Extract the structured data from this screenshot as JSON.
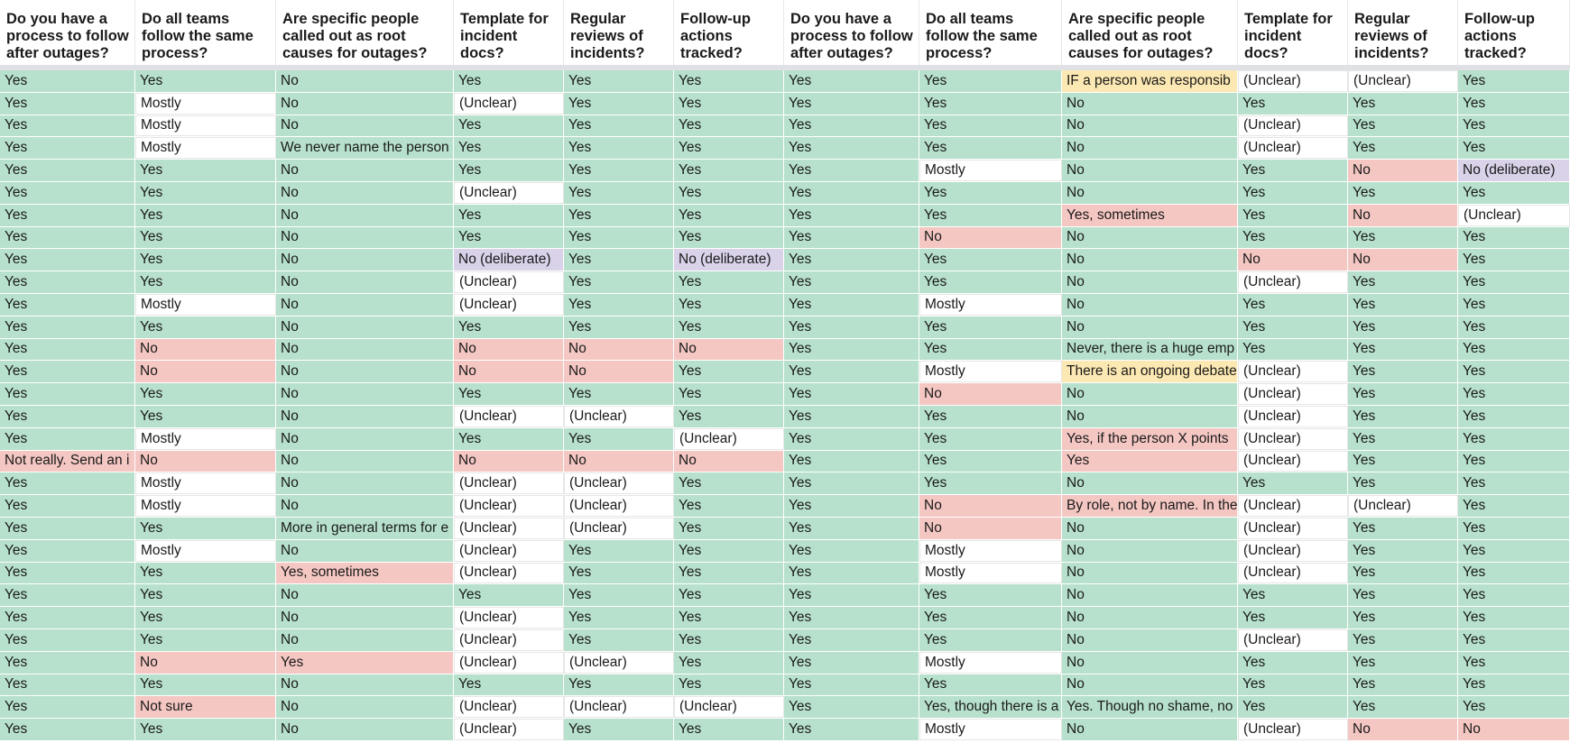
{
  "columns": [
    "Do you have a process to follow after outages?",
    "Do all teams follow the same process?",
    "Are specific people called out as root causes for outages?",
    "Template for incident docs?",
    "Regular reviews of incidents?",
    "Follow-up actions tracked?"
  ],
  "status_colors": {
    "yes_green": "#b7e1cd",
    "unclear_white": "#ffffff",
    "no_red": "#f4c7c3",
    "deliberate_purple": "#d9d2e9",
    "comment_yellow": "#fce8b2"
  },
  "left_rows": [
    [
      "Yes",
      "Yes",
      "No",
      "Yes",
      "Yes",
      "Yes"
    ],
    [
      "Yes",
      "Mostly",
      "No",
      "(Unclear)",
      "Yes",
      "Yes"
    ],
    [
      "Yes",
      "Mostly",
      "No",
      "Yes",
      "Yes",
      "Yes"
    ],
    [
      "Yes",
      "Mostly",
      "We never name the person",
      "Yes",
      "Yes",
      "Yes"
    ],
    [
      "Yes",
      "Yes",
      "No",
      "Yes",
      "Yes",
      "Yes"
    ],
    [
      "Yes",
      "Yes",
      "No",
      "(Unclear)",
      "Yes",
      "Yes"
    ],
    [
      "Yes",
      "Yes",
      "No",
      "Yes",
      "Yes",
      "Yes"
    ],
    [
      "Yes",
      "Yes",
      "No",
      "Yes",
      "Yes",
      "Yes"
    ],
    [
      "Yes",
      "Yes",
      "No",
      "No (deliberate)",
      "Yes",
      "No (deliberate)"
    ],
    [
      "Yes",
      "Yes",
      "No",
      "(Unclear)",
      "Yes",
      "Yes"
    ],
    [
      "Yes",
      "Mostly",
      "No",
      "(Unclear)",
      "Yes",
      "Yes"
    ],
    [
      "Yes",
      "Yes",
      "No",
      "Yes",
      "Yes",
      "Yes"
    ],
    [
      "Yes",
      "No",
      "No",
      "No",
      "No",
      "No"
    ],
    [
      "Yes",
      "No",
      "No",
      "No",
      "No",
      "Yes"
    ],
    [
      "Yes",
      "Yes",
      "No",
      "Yes",
      "Yes",
      "Yes"
    ],
    [
      "Yes",
      "Yes",
      "No",
      "(Unclear)",
      "(Unclear)",
      "Yes"
    ],
    [
      "Yes",
      "Mostly",
      "No",
      "Yes",
      "Yes",
      "(Unclear)"
    ],
    [
      "Not really. Send an i",
      "No",
      "No",
      "No",
      "No",
      "No"
    ],
    [
      "Yes",
      "Mostly",
      "No",
      "(Unclear)",
      "(Unclear)",
      "Yes"
    ],
    [
      "Yes",
      "Mostly",
      "No",
      "(Unclear)",
      "(Unclear)",
      "Yes"
    ],
    [
      "Yes",
      "Yes",
      "More in general terms for e",
      "(Unclear)",
      "(Unclear)",
      "Yes"
    ],
    [
      "Yes",
      "Mostly",
      "No",
      "(Unclear)",
      "Yes",
      "Yes"
    ],
    [
      "Yes",
      "Yes",
      "Yes, sometimes",
      "(Unclear)",
      "Yes",
      "Yes"
    ],
    [
      "Yes",
      "Yes",
      "No",
      "Yes",
      "Yes",
      "Yes"
    ],
    [
      "Yes",
      "Yes",
      "No",
      "(Unclear)",
      "Yes",
      "Yes"
    ],
    [
      "Yes",
      "Yes",
      "No",
      "(Unclear)",
      "Yes",
      "Yes"
    ],
    [
      "Yes",
      "No",
      "Yes",
      "(Unclear)",
      "(Unclear)",
      "Yes"
    ],
    [
      "Yes",
      "Yes",
      "No",
      "Yes",
      "Yes",
      "Yes"
    ],
    [
      "Yes",
      "Not sure",
      "No",
      "(Unclear)",
      "(Unclear)",
      "(Unclear)"
    ],
    [
      "Yes",
      "Yes",
      "No",
      "(Unclear)",
      "Yes",
      "Yes"
    ]
  ],
  "right_rows": [
    [
      "Yes",
      "Yes",
      "IF a person was responsib",
      "(Unclear)",
      "(Unclear)",
      "Yes"
    ],
    [
      "Yes",
      "Yes",
      "No",
      "Yes",
      "Yes",
      "Yes"
    ],
    [
      "Yes",
      "Yes",
      "No",
      "(Unclear)",
      "Yes",
      "Yes"
    ],
    [
      "Yes",
      "Yes",
      "No",
      "(Unclear)",
      "Yes",
      "Yes"
    ],
    [
      "Yes",
      "Mostly",
      "No",
      "Yes",
      "No",
      "No (deliberate)"
    ],
    [
      "Yes",
      "Yes",
      "No",
      "Yes",
      "Yes",
      "Yes"
    ],
    [
      "Yes",
      "Yes",
      "Yes, sometimes",
      "Yes",
      "No",
      "(Unclear)"
    ],
    [
      "Yes",
      "No",
      "No",
      "Yes",
      "Yes",
      "Yes"
    ],
    [
      "Yes",
      "Yes",
      "No",
      "No",
      "No",
      "Yes"
    ],
    [
      "Yes",
      "Yes",
      "No",
      "(Unclear)",
      "Yes",
      "Yes"
    ],
    [
      "Yes",
      "Mostly",
      "No",
      "Yes",
      "Yes",
      "Yes"
    ],
    [
      "Yes",
      "Yes",
      "No",
      "Yes",
      "Yes",
      "Yes"
    ],
    [
      "Yes",
      "Yes",
      "Never, there is a huge emp",
      "Yes",
      "Yes",
      "Yes"
    ],
    [
      "Yes",
      "Mostly",
      "There is an ongoing debate",
      "(Unclear)",
      "Yes",
      "Yes"
    ],
    [
      "Yes",
      "No",
      "No",
      "(Unclear)",
      "Yes",
      "Yes"
    ],
    [
      "Yes",
      "Yes",
      "No",
      "(Unclear)",
      "Yes",
      "Yes"
    ],
    [
      "Yes",
      "Yes",
      "Yes, if the person X points",
      "(Unclear)",
      "Yes",
      "Yes"
    ],
    [
      "Yes",
      "Yes",
      "Yes",
      "(Unclear)",
      "Yes",
      "Yes"
    ],
    [
      "Yes",
      "Yes",
      "No",
      "Yes",
      "Yes",
      "Yes"
    ],
    [
      "Yes",
      "No",
      "By role, not by name. In the",
      "(Unclear)",
      "(Unclear)",
      "Yes"
    ],
    [
      "Yes",
      "No",
      "No",
      "(Unclear)",
      "Yes",
      "Yes"
    ],
    [
      "Yes",
      "Mostly",
      "No",
      "(Unclear)",
      "Yes",
      "Yes"
    ],
    [
      "Yes",
      "Mostly",
      "No",
      "(Unclear)",
      "Yes",
      "Yes"
    ],
    [
      "Yes",
      "Yes",
      "No",
      "Yes",
      "Yes",
      "Yes"
    ],
    [
      "Yes",
      "Yes",
      "No",
      "Yes",
      "Yes",
      "Yes"
    ],
    [
      "Yes",
      "Yes",
      "No",
      "(Unclear)",
      "Yes",
      "Yes"
    ],
    [
      "Yes",
      "Mostly",
      "No",
      "Yes",
      "Yes",
      "Yes"
    ],
    [
      "Yes",
      "Yes",
      "No",
      "Yes",
      "Yes",
      "Yes"
    ],
    [
      "Yes",
      "Yes, though there is a",
      "Yes. Though no shame, no",
      "Yes",
      "Yes",
      "Yes"
    ],
    [
      "Yes",
      "Mostly",
      "No",
      "(Unclear)",
      "No",
      "No"
    ]
  ]
}
